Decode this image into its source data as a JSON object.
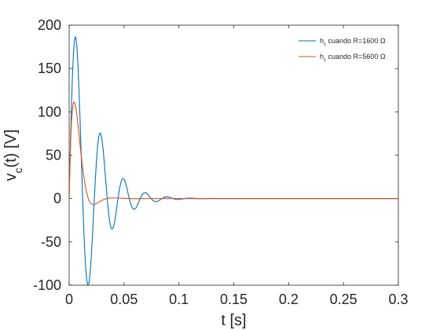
{
  "chart_data": {
    "type": "line",
    "title": "",
    "xlabel": "t [s]",
    "ylabel_main": "v",
    "ylabel_sub": "c",
    "ylabel_rest": "(t) [V]",
    "xlim": [
      0,
      0.3
    ],
    "ylim": [
      -100,
      200
    ],
    "xticks": [
      0,
      0.05,
      0.1,
      0.15,
      0.2,
      0.25,
      0.3
    ],
    "xtick_labels": [
      "0",
      "0.05",
      "0.1",
      "0.15",
      "0.2",
      "0.25",
      "0.3"
    ],
    "yticks": [
      -100,
      -50,
      0,
      50,
      100,
      150,
      200
    ],
    "ytick_labels": [
      "-100",
      "-50",
      "0",
      "50",
      "100",
      "150",
      "200"
    ],
    "grid": false,
    "legend_position": "top-right",
    "series": [
      {
        "name_main": "h",
        "name_sub": "c",
        "name_rest": " cuando R=1600 Ω",
        "color": "#0072BD",
        "x": [
          0,
          0.001,
          0.002,
          0.003,
          0.004,
          0.005,
          0.006,
          0.007,
          0.008,
          0.009,
          0.01,
          0.011,
          0.012,
          0.013,
          0.014,
          0.015,
          0.016,
          0.017,
          0.018,
          0.019,
          0.02,
          0.021,
          0.022,
          0.023,
          0.024,
          0.025,
          0.026,
          0.027,
          0.028,
          0.029,
          0.03,
          0.031,
          0.032,
          0.033,
          0.034,
          0.035,
          0.036,
          0.037,
          0.038,
          0.039,
          0.04,
          0.041,
          0.042,
          0.043,
          0.044,
          0.045,
          0.046,
          0.047,
          0.048,
          0.049,
          0.05,
          0.051,
          0.052,
          0.053,
          0.054,
          0.055,
          0.056,
          0.057,
          0.058,
          0.059,
          0.06,
          0.061,
          0.062,
          0.063,
          0.064,
          0.065,
          0.066,
          0.067,
          0.068,
          0.069,
          0.07,
          0.071,
          0.072,
          0.073,
          0.074,
          0.075,
          0.076,
          0.077,
          0.078,
          0.079,
          0.08,
          0.081,
          0.082,
          0.083,
          0.084,
          0.085,
          0.086,
          0.087,
          0.088,
          0.089,
          0.09,
          0.091,
          0.092,
          0.093,
          0.094,
          0.095,
          0.096,
          0.097,
          0.098,
          0.099,
          0.1,
          0.102,
          0.104,
          0.106,
          0.108,
          0.11,
          0.112,
          0.114,
          0.116,
          0.118,
          0.12,
          0.122,
          0.124,
          0.126,
          0.128,
          0.13,
          0.135,
          0.14,
          0.145,
          0.15,
          0.16,
          0.17,
          0.18,
          0.19,
          0.2,
          0.22,
          0.24,
          0.26,
          0.28,
          0.3
        ],
        "y": [
          0,
          53.9,
          102.3,
          141.6,
          169.5,
          184.6,
          186.6,
          176.2,
          154.9,
          124.8,
          88.8,
          49.9,
          11.2,
          -24.6,
          -55.1,
          -78.6,
          -93.9,
          -100.4,
          -98.1,
          -87.8,
          -70.7,
          -48.8,
          -24.1,
          1.2,
          24.9,
          45.3,
          61.1,
          71.3,
          75.7,
          74.2,
          67.4,
          56.2,
          42.1,
          26.4,
          10.5,
          -4.4,
          -17.1,
          -26.9,
          -33.1,
          -35.5,
          -34.3,
          -29.8,
          -22.8,
          -14.1,
          -4.9,
          4.1,
          11.8,
          17.8,
          21.6,
          23.1,
          22.3,
          19.6,
          15.3,
          10.0,
          4.4,
          -1.0,
          -5.7,
          -9.3,
          -11.6,
          -12.5,
          -12.1,
          -10.6,
          -8.2,
          -5.3,
          -2.2,
          0.7,
          3.2,
          5.2,
          6.4,
          6.8,
          6.6,
          5.7,
          4.4,
          2.8,
          1.1,
          -0.4,
          -1.8,
          -2.8,
          -3.5,
          -3.7,
          -3.5,
          -3.0,
          -2.3,
          -1.4,
          -0.5,
          0.3,
          1.0,
          1.5,
          1.9,
          2.0,
          1.9,
          1.6,
          1.2,
          0.7,
          0.3,
          -0.2,
          -0.6,
          -0.8,
          -1.0,
          -1.1,
          -1.0,
          -0.7,
          -0.3,
          0.1,
          0.4,
          0.6,
          0.5,
          0.3,
          0.0,
          -0.2,
          -0.3,
          -0.3,
          -0.2,
          0.0,
          0.1,
          0.2,
          0.0,
          -0.1,
          0.0,
          0.0,
          0.0,
          0.0,
          0.0,
          0.0,
          0.0,
          0.0,
          0.0,
          0.0,
          0.0,
          0.0
        ]
      },
      {
        "name_main": "h",
        "name_sub": "c",
        "name_rest": " cuando R=5600 Ω",
        "color": "#D95319",
        "x": [
          0,
          0.001,
          0.002,
          0.003,
          0.004,
          0.005,
          0.006,
          0.007,
          0.008,
          0.009,
          0.01,
          0.011,
          0.012,
          0.013,
          0.014,
          0.015,
          0.016,
          0.017,
          0.018,
          0.019,
          0.02,
          0.021,
          0.022,
          0.023,
          0.024,
          0.025,
          0.026,
          0.027,
          0.028,
          0.029,
          0.03,
          0.032,
          0.034,
          0.036,
          0.038,
          0.04,
          0.042,
          0.044,
          0.046,
          0.048,
          0.05,
          0.055,
          0.06,
          0.065,
          0.07,
          0.08,
          0.09,
          0.1,
          0.15,
          0.2,
          0.25,
          0.3
        ],
        "y": [
          0,
          52.1,
          85.0,
          103.4,
          111.1,
          111.1,
          105.7,
          96.8,
          85.8,
          73.8,
          61.5,
          49.6,
          38.5,
          28.5,
          19.8,
          12.4,
          6.4,
          1.7,
          -1.9,
          -4.3,
          -5.9,
          -6.7,
          -7.0,
          -6.9,
          -6.4,
          -5.8,
          -5.0,
          -4.2,
          -3.4,
          -2.7,
          -2.0,
          -0.9,
          -0.1,
          0.4,
          0.6,
          0.7,
          0.7,
          0.6,
          0.5,
          0.3,
          0.2,
          0.0,
          -0.1,
          0.0,
          0.0,
          0.0,
          0.0,
          0.0,
          0.0,
          0.0,
          0.0,
          0.0
        ]
      }
    ]
  }
}
